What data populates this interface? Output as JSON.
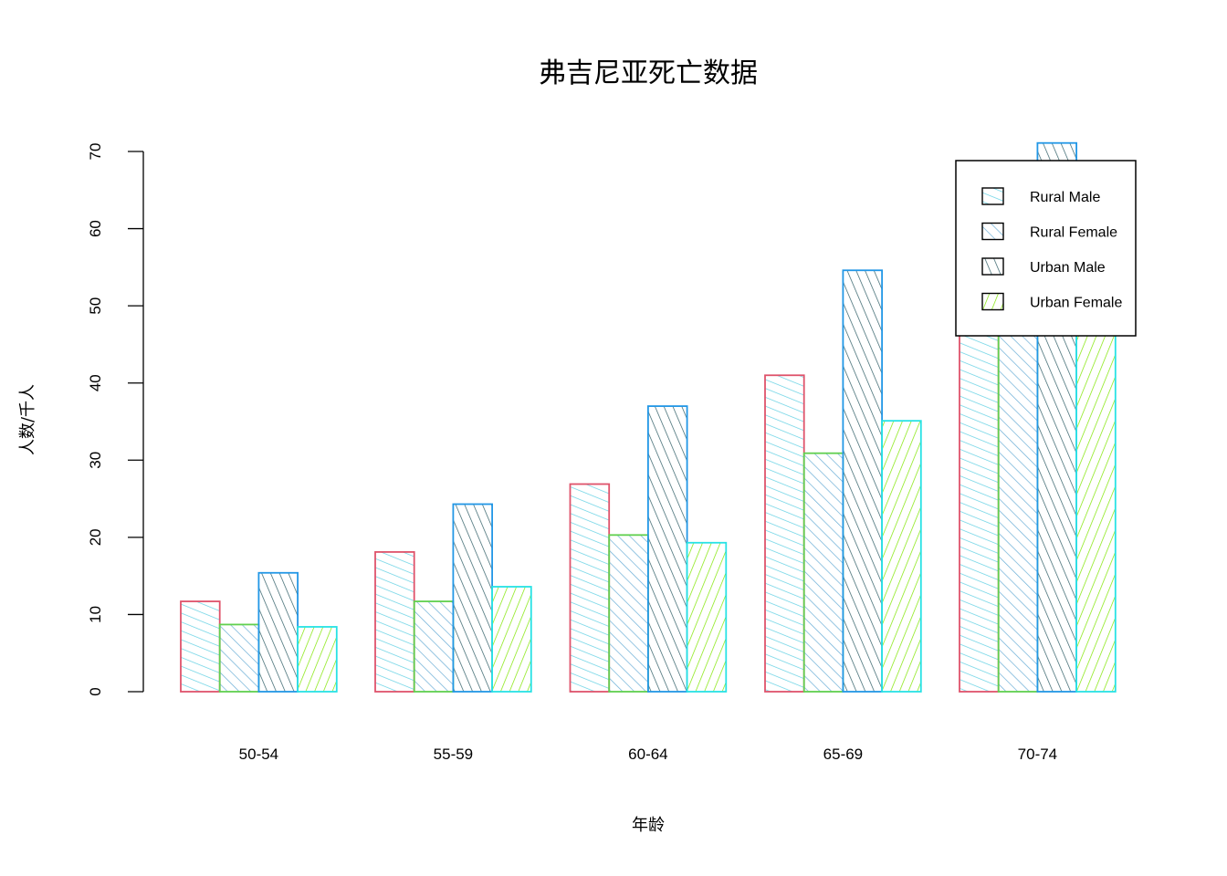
{
  "chart_data": {
    "type": "bar",
    "title": "弗吉尼亚死亡数据",
    "xlabel": "年龄",
    "ylabel": "人数/千人",
    "categories": [
      "50-54",
      "55-59",
      "60-64",
      "65-69",
      "70-74"
    ],
    "ylim": [
      0,
      70
    ],
    "yticks": [
      "0",
      "10",
      "20",
      "30",
      "40",
      "50",
      "60",
      "70"
    ],
    "series": [
      {
        "name": "Rural Male",
        "values": [
          11.7,
          18.1,
          26.9,
          41.0,
          66.0
        ],
        "border": "#DF536B",
        "hatch": "#61D0E3",
        "hatch_angle": 22
      },
      {
        "name": "Rural Female",
        "values": [
          8.7,
          11.7,
          20.3,
          30.9,
          54.3
        ],
        "border": "#61D04F",
        "hatch": "#6BAED6",
        "hatch_angle": 45
      },
      {
        "name": "Urban Male",
        "values": [
          15.4,
          24.3,
          37.0,
          54.6,
          71.1
        ],
        "border": "#2297E6",
        "hatch": "#2F5D66",
        "hatch_angle": 67
      },
      {
        "name": "Urban Female",
        "values": [
          8.4,
          13.6,
          19.3,
          35.1,
          50.0
        ],
        "border": "#28E2E5",
        "hatch": "#7FE500",
        "hatch_angle": 112
      }
    ],
    "legend_position": "top-right",
    "grid": false
  }
}
